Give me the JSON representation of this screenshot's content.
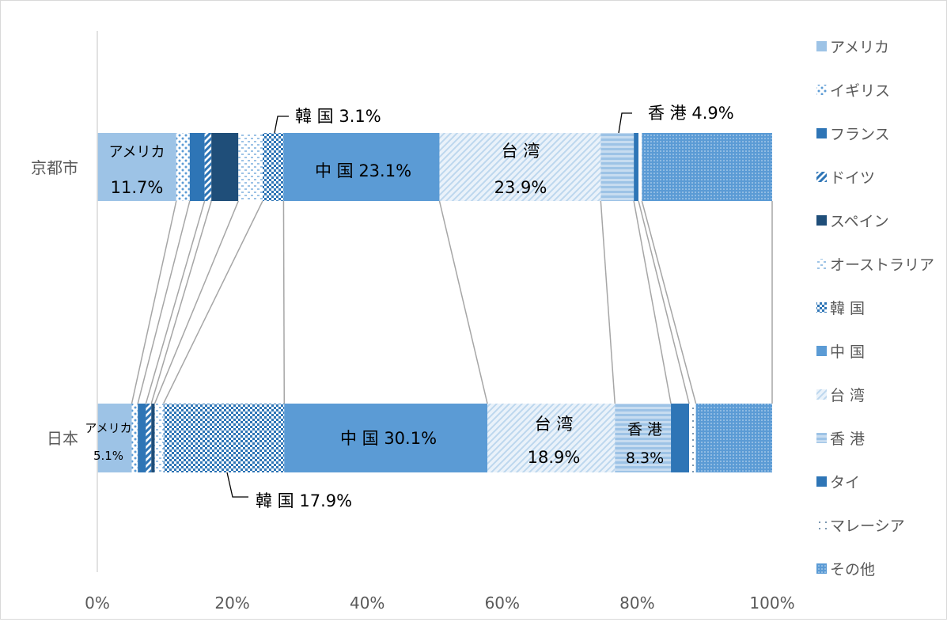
{
  "chart_data": {
    "type": "bar",
    "stacked": "percent",
    "orientation": "horizontal",
    "categories": [
      "京都市",
      "日本"
    ],
    "xlim": [
      0,
      100
    ],
    "x_ticks": [
      "0%",
      "20%",
      "40%",
      "60%",
      "80%",
      "100%"
    ],
    "grid": false,
    "legend_position": "right",
    "series": [
      {
        "name": "アメリカ",
        "values": [
          11.7,
          5.1
        ],
        "color": "#9dc3e6",
        "pattern": "solid"
      },
      {
        "name": "イギリス",
        "values": [
          2.0,
          0.9
        ],
        "color": "#5b9bd5",
        "pattern": "dots"
      },
      {
        "name": "フランス",
        "values": [
          2.2,
          1.2
        ],
        "color": "#2e75b6",
        "pattern": "solid"
      },
      {
        "name": "ドイツ",
        "values": [
          1.0,
          0.8
        ],
        "color": "#2e75b6",
        "pattern": "diag"
      },
      {
        "name": "スペイン",
        "values": [
          4.0,
          0.5
        ],
        "color": "#1f4e79",
        "pattern": "solid"
      },
      {
        "name": "オーストラリア",
        "values": [
          3.6,
          1.3
        ],
        "color": "#9dc3e6",
        "pattern": "dashes"
      },
      {
        "name": "韓 国",
        "values": [
          3.1,
          17.9
        ],
        "color": "#2e75b6",
        "pattern": "checker"
      },
      {
        "name": "中 国",
        "values": [
          23.1,
          30.1
        ],
        "color": "#5b9bd5",
        "pattern": "solid"
      },
      {
        "name": "台 湾",
        "values": [
          23.9,
          18.9
        ],
        "color": "#bdd7ee",
        "pattern": "wide-diag"
      },
      {
        "name": "香 港",
        "values": [
          4.9,
          8.3
        ],
        "color": "#9dc3e6",
        "pattern": "hlines"
      },
      {
        "name": "タイ",
        "values": [
          0.7,
          2.7
        ],
        "color": "#2e75b6",
        "pattern": "solid"
      },
      {
        "name": "マレーシア",
        "values": [
          0.5,
          1.0
        ],
        "color": "#ffffff",
        "pattern": "sparse-dots"
      },
      {
        "name": "その他",
        "values": [
          19.3,
          11.3
        ],
        "color": "#5b9bd5",
        "pattern": "grid-dots"
      }
    ],
    "labels": {
      "kyoto_america_name": "アメリカ",
      "kyoto_america_value": "11.7%",
      "kyoto_korea": "韓 国 3.1%",
      "kyoto_china": "中 国 23.1%",
      "kyoto_taiwan_name": "台 湾",
      "kyoto_taiwan_value": "23.9%",
      "kyoto_hongkong": "香 港 4.9%",
      "japan_america_name": "アメリカ",
      "japan_america_value": "5.1%",
      "japan_korea": "韓 国 17.9%",
      "japan_china": "中 国 30.1%",
      "japan_taiwan_name": "台 湾",
      "japan_taiwan_value": "18.9%",
      "japan_hongkong_name": "香 港",
      "japan_hongkong_value": "8.3%"
    }
  }
}
